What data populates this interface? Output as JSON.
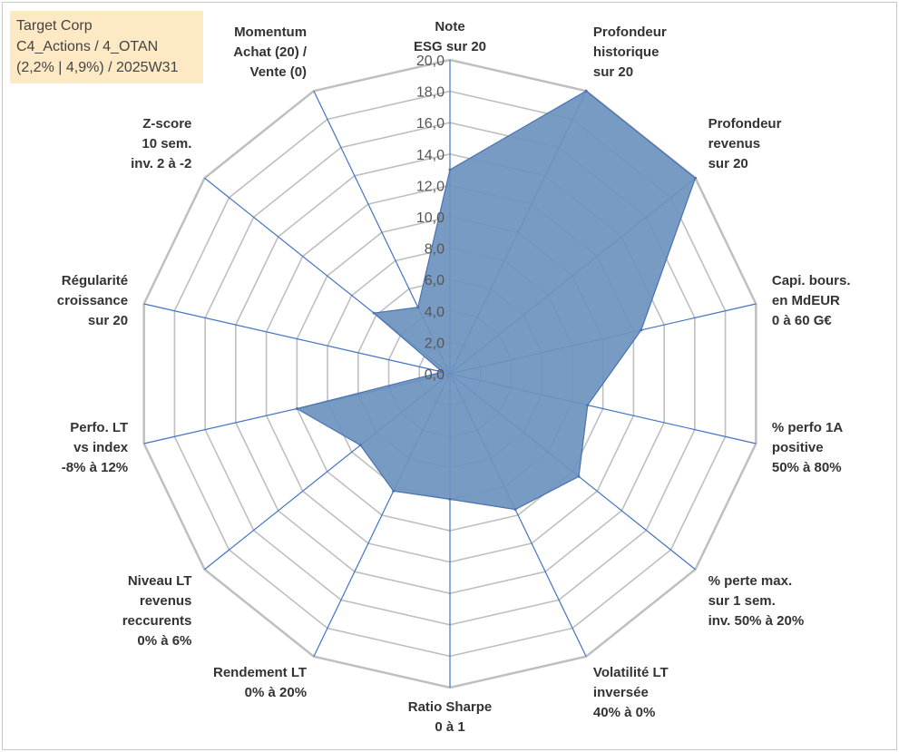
{
  "info_box": {
    "line1": "Target Corp",
    "line2": "C4_Actions / 4_OTAN",
    "line3": "(2,2% | 4,9%) / 2025W31"
  },
  "chart_data": {
    "type": "radar",
    "r_range": [
      0,
      20
    ],
    "r_ticks": [
      "0,0",
      "2,0",
      "4,0",
      "6,0",
      "8,0",
      "10,0",
      "12,0",
      "14,0",
      "16,0",
      "18,0",
      "20,0"
    ],
    "grid": true,
    "colors": {
      "fill": "#6d93bf",
      "stroke": "#4a72b0",
      "grid": "#bfbfbf",
      "spoke": "#4472c4"
    },
    "axes": [
      {
        "label": [
          "Note",
          "ESG sur 20"
        ],
        "value": 13.0
      },
      {
        "label": [
          "Profondeur",
          "historique",
          "sur 20"
        ],
        "value": 20.0
      },
      {
        "label": [
          "Profondeur",
          "revenus",
          "sur 20"
        ],
        "value": 20.0
      },
      {
        "label": [
          "Capi. bours.",
          "en MdEUR",
          "0 à 60 G€"
        ],
        "value": 12.5
      },
      {
        "label": [
          "% perfo 1A",
          "positive",
          "50% à 80%"
        ],
        "value": 9.0
      },
      {
        "label": [
          "% perte max.",
          "sur 1 sem.",
          "inv. 50% à 20%"
        ],
        "value": 10.5
      },
      {
        "label": [
          "Volatilité LT",
          "inversée",
          "40% à 0%"
        ],
        "value": 9.6
      },
      {
        "label": [
          "Ratio Sharpe",
          "0 à 1"
        ],
        "value": 8.0
      },
      {
        "label": [
          "Rendement LT",
          "0% à 20%"
        ],
        "value": 8.3
      },
      {
        "label": [
          "Niveau LT",
          "revenus",
          "reccurents",
          "0% à 6%"
        ],
        "value": 7.3
      },
      {
        "label": [
          "Perfo. LT",
          "vs index",
          "-8% à 12%"
        ],
        "value": 10.0
      },
      {
        "label": [
          "Régularité",
          "croissance",
          "sur 20"
        ],
        "value": 0.5
      },
      {
        "label": [
          "Z-score",
          "10 sem.",
          "inv. 2 à -2"
        ],
        "value": 6.2
      },
      {
        "label": [
          "Momentum",
          "Achat (20) /",
          "Vente (0)"
        ],
        "value": 4.7
      }
    ]
  }
}
